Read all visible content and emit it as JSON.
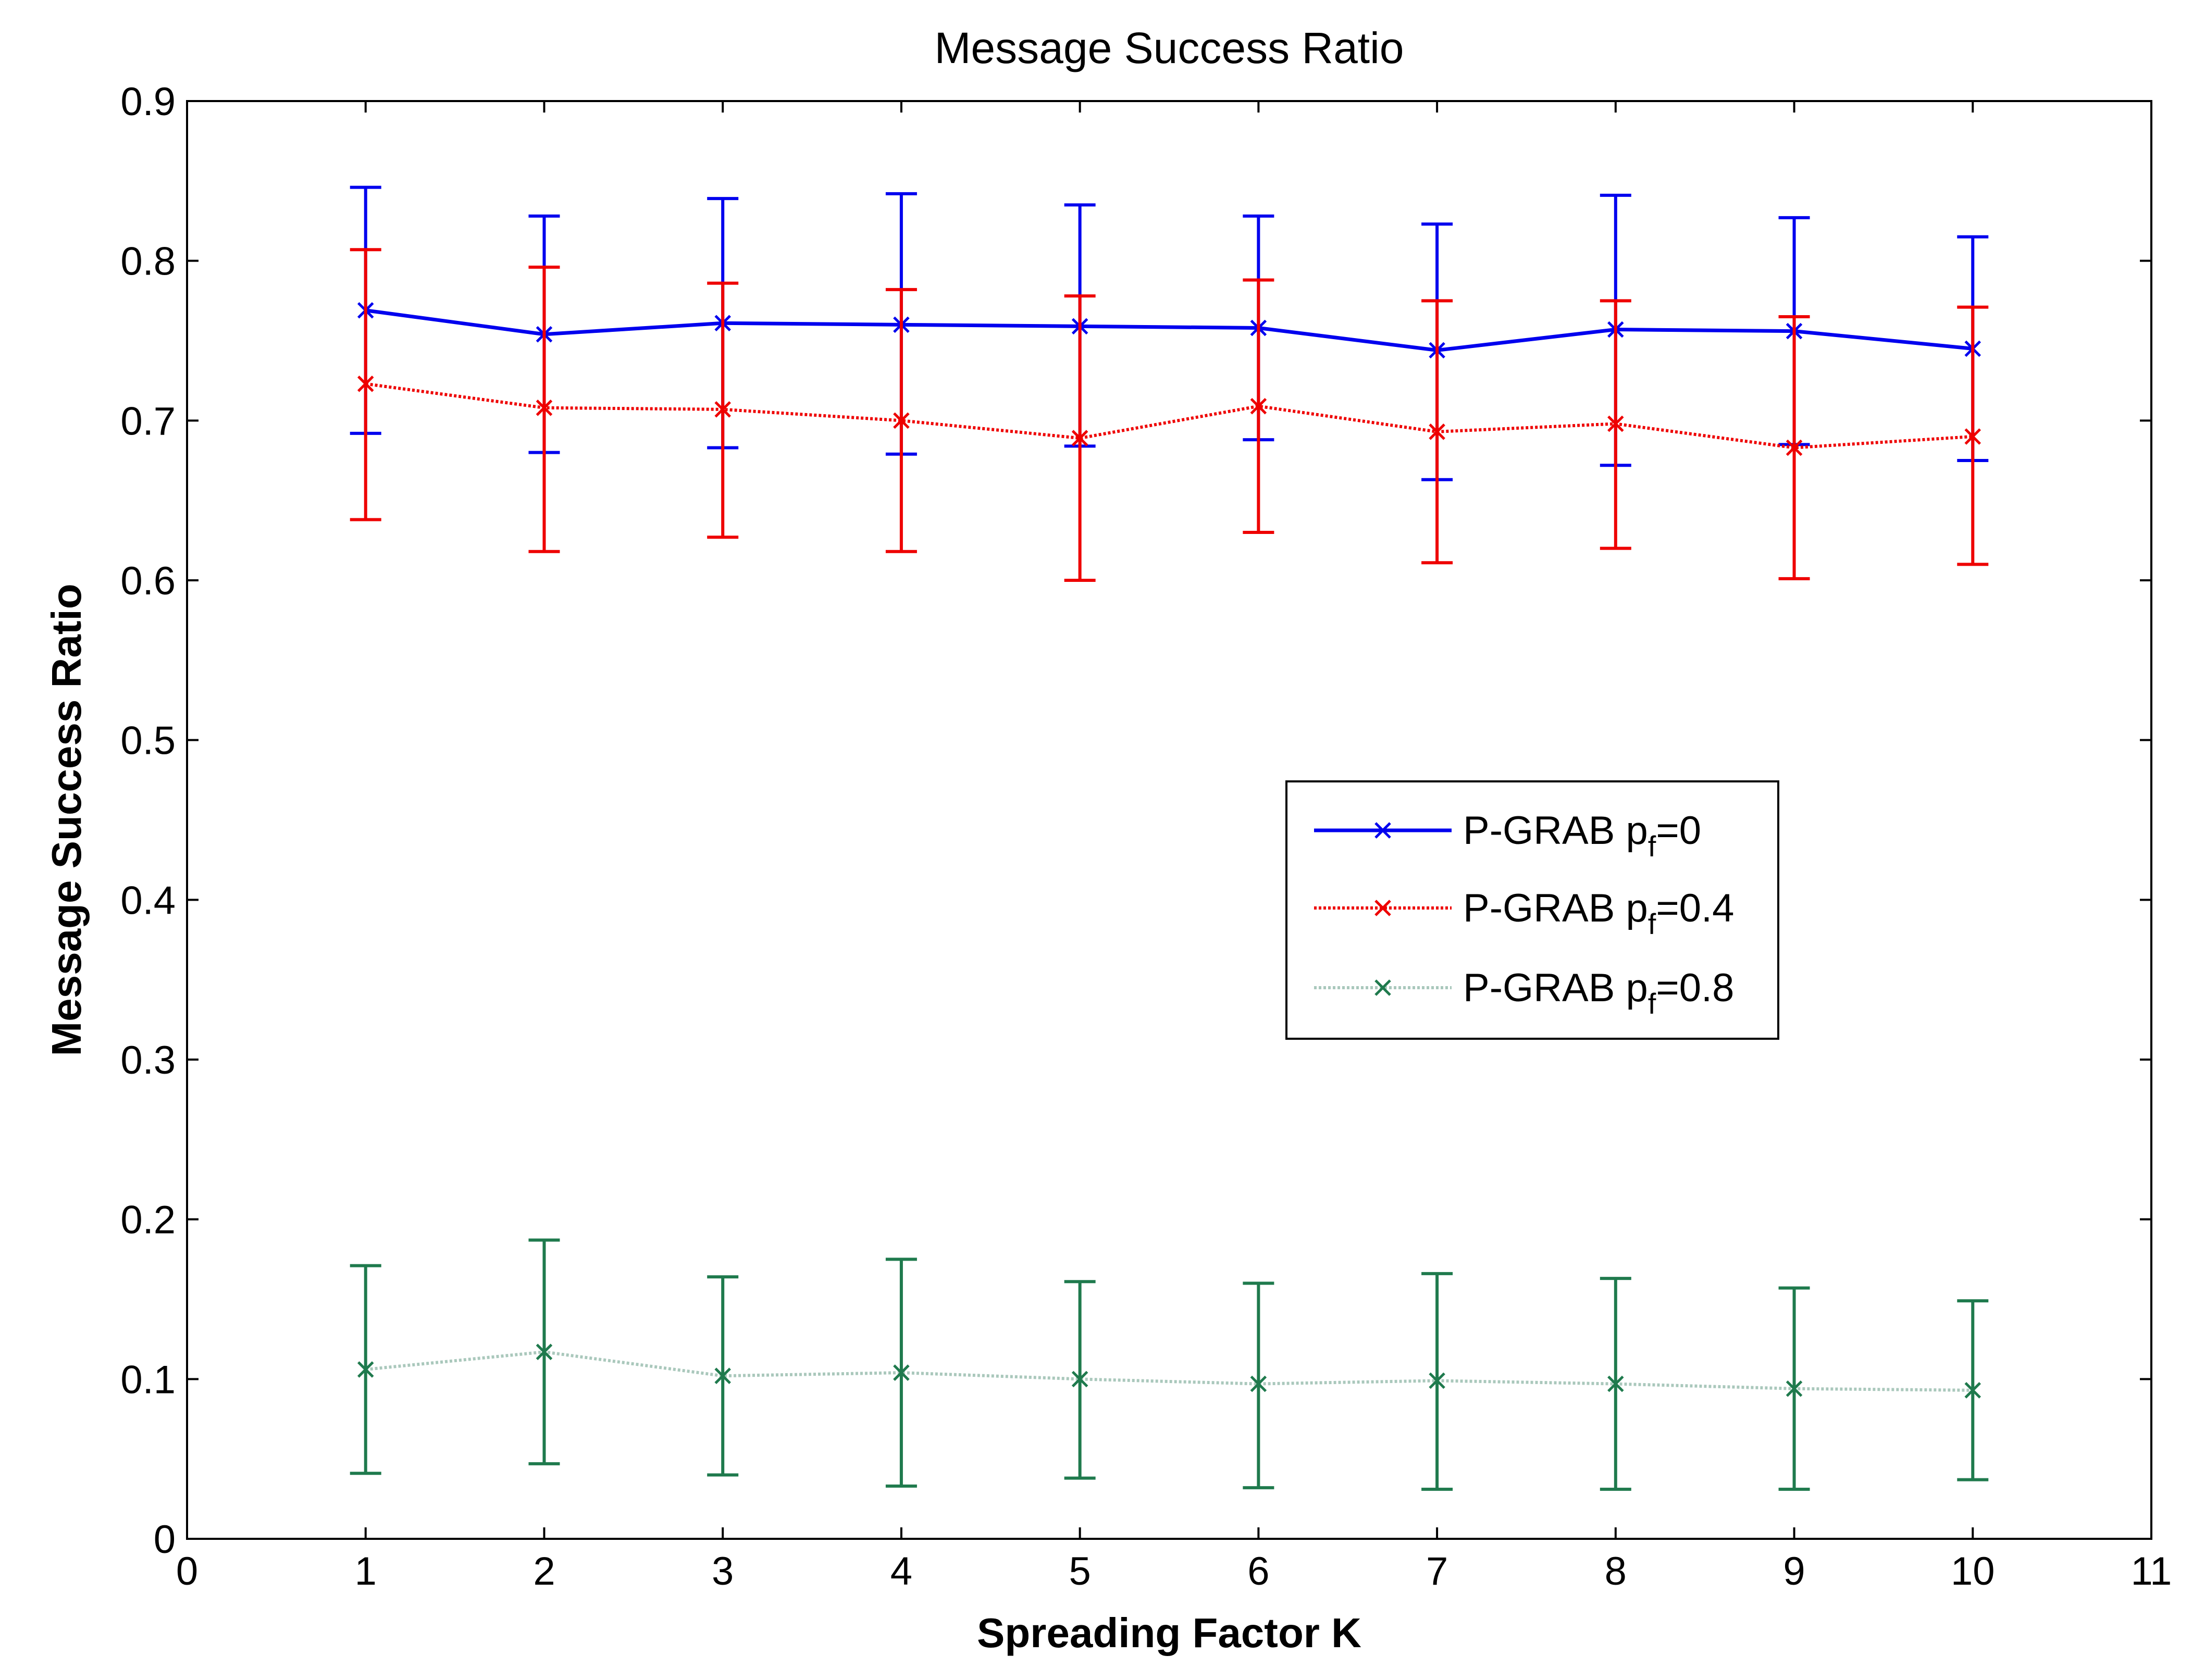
{
  "chart_data": {
    "type": "line",
    "title": "Message Success Ratio",
    "xlabel": "Spreading Factor K",
    "ylabel": "Message Success Ratio",
    "xlim": [
      0,
      11
    ],
    "ylim": [
      0,
      0.9
    ],
    "xticks": [
      "0",
      "1",
      "2",
      "3",
      "4",
      "5",
      "6",
      "7",
      "8",
      "9",
      "10",
      "11"
    ],
    "yticks": [
      "0",
      "0.1",
      "0.2",
      "0.3",
      "0.4",
      "0.5",
      "0.6",
      "0.7",
      "0.8",
      "0.9"
    ],
    "x": [
      1,
      2,
      3,
      4,
      5,
      6,
      7,
      8,
      9,
      10
    ],
    "grid": false,
    "legend_position": "center-right",
    "series": [
      {
        "name": "P-GRAB p_f=0",
        "legend_prefix": "P-GRAB p",
        "legend_sub": "f",
        "legend_suffix": "=0",
        "color": "#0000ee",
        "line_style": "solid",
        "marker": "x",
        "values": [
          0.769,
          0.754,
          0.761,
          0.76,
          0.759,
          0.758,
          0.744,
          0.757,
          0.756,
          0.745
        ],
        "err_low": [
          0.692,
          0.68,
          0.683,
          0.679,
          0.684,
          0.688,
          0.663,
          0.672,
          0.685,
          0.675
        ],
        "err_high": [
          0.846,
          0.828,
          0.839,
          0.842,
          0.835,
          0.828,
          0.823,
          0.841,
          0.827,
          0.815
        ]
      },
      {
        "name": "P-GRAB p_f=0.4",
        "legend_prefix": "P-GRAB p",
        "legend_sub": "f",
        "legend_suffix": "=0.4",
        "color": "#ee0000",
        "line_style": "dotted",
        "marker": "x",
        "values": [
          0.723,
          0.708,
          0.707,
          0.7,
          0.689,
          0.709,
          0.693,
          0.698,
          0.683,
          0.69
        ],
        "err_low": [
          0.638,
          0.618,
          0.627,
          0.618,
          0.6,
          0.63,
          0.611,
          0.62,
          0.601,
          0.61
        ],
        "err_high": [
          0.807,
          0.796,
          0.786,
          0.782,
          0.778,
          0.788,
          0.775,
          0.775,
          0.765,
          0.771
        ]
      },
      {
        "name": "P-GRAB p_f=0.8",
        "legend_prefix": "P-GRAB p",
        "legend_sub": "f",
        "legend_suffix": "=0.8",
        "color": "#1f7a4d",
        "line_color": "#aac8bc",
        "line_style": "dotted",
        "marker": "x",
        "values": [
          0.106,
          0.117,
          0.102,
          0.104,
          0.1,
          0.097,
          0.099,
          0.097,
          0.094,
          0.093
        ],
        "err_low": [
          0.041,
          0.047,
          0.04,
          0.033,
          0.038,
          0.032,
          0.031,
          0.031,
          0.031,
          0.037
        ],
        "err_high": [
          0.171,
          0.187,
          0.164,
          0.175,
          0.161,
          0.16,
          0.166,
          0.163,
          0.157,
          0.149
        ]
      }
    ]
  }
}
